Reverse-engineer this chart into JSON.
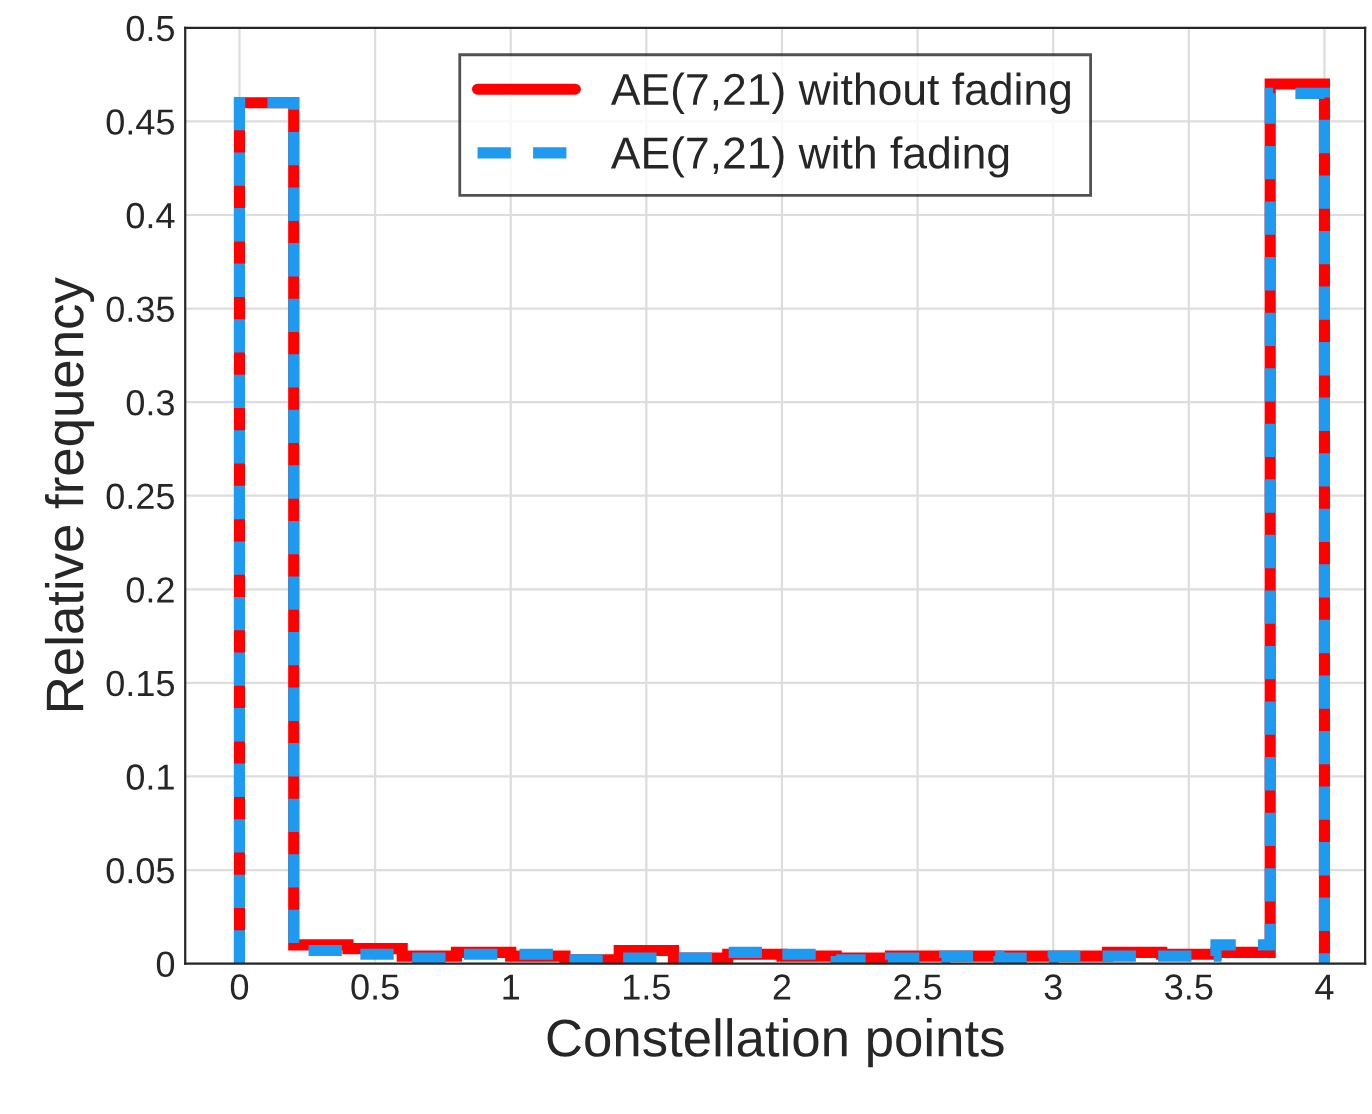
{
  "chart_data": {
    "type": "histogram",
    "xlabel": "Constellation points",
    "ylabel": "Relative frequency",
    "bins": [
      0,
      0.2,
      0.4,
      0.6,
      0.8,
      1.0,
      1.2,
      1.4,
      1.6,
      1.8,
      2.0,
      2.2,
      2.4,
      2.6,
      2.8,
      3.0,
      3.2,
      3.4,
      3.6,
      3.8,
      4.0
    ],
    "series": [
      {
        "name": "AE(7,21) without fading",
        "color": "#ff0000",
        "line_style": "solid",
        "values": [
          0.46,
          0.01,
          0.008,
          0.004,
          0.006,
          0.004,
          0.002,
          0.007,
          0.003,
          0.005,
          0.004,
          0.003,
          0.004,
          0.004,
          0.004,
          0.004,
          0.006,
          0.005,
          0.006,
          0.47
        ]
      },
      {
        "name": "AE(7,21) with fading",
        "color": "#1e9bf0",
        "line_style": "dashed",
        "values": [
          0.46,
          0.007,
          0.005,
          0.003,
          0.005,
          0.005,
          0.002,
          0.003,
          0.003,
          0.006,
          0.005,
          0.002,
          0.003,
          0.004,
          0.003,
          0.004,
          0.004,
          0.004,
          0.01,
          0.465
        ]
      }
    ],
    "xlim": [
      -0.2,
      4.15
    ],
    "ylim": [
      0,
      0.5
    ],
    "xticks": [
      0,
      0.5,
      1,
      1.5,
      2,
      2.5,
      3,
      3.5,
      4
    ],
    "yticks": [
      0,
      0.05,
      0.1,
      0.15,
      0.2,
      0.25,
      0.3,
      0.35,
      0.4,
      0.45,
      0.5
    ],
    "grid": true,
    "legend": "top"
  }
}
